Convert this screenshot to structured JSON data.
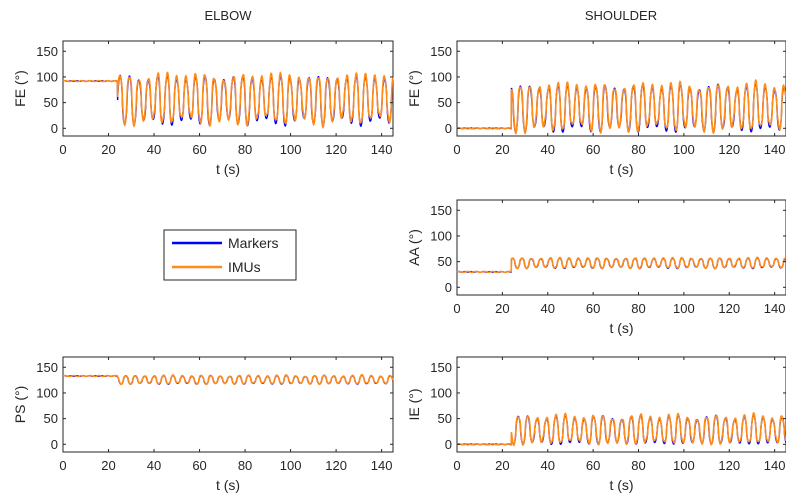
{
  "column_titles": {
    "left": "ELBOW",
    "right": "SHOULDER"
  },
  "legend": {
    "entries": [
      "Markers",
      "IMUs"
    ]
  },
  "colors": {
    "markers": "#0000ff",
    "imus": "#ff8c1a",
    "axis": "#262626"
  },
  "chart_data": [
    {
      "id": "elbow-fe",
      "type": "line",
      "xlabel": "t (s)",
      "ylabel": "FE (°)",
      "xlim": [
        0,
        145
      ],
      "ylim": [
        -15,
        170
      ],
      "xticks": [
        0,
        20,
        40,
        60,
        80,
        100,
        120,
        140
      ],
      "yticks": [
        0,
        50,
        100,
        150
      ],
      "baseline": 92,
      "baseline_end": 24,
      "osc": {
        "start": 24,
        "period": 4.15,
        "low": 12,
        "high": 98,
        "phase": 0
      },
      "series": [
        {
          "name": "Markers"
        },
        {
          "name": "IMUs"
        }
      ]
    },
    {
      "id": "shoulder-fe",
      "type": "line",
      "xlabel": "t (s)",
      "ylabel": "FE (°)",
      "xlim": [
        0,
        145
      ],
      "ylim": [
        -15,
        170
      ],
      "xticks": [
        0,
        20,
        40,
        60,
        80,
        100,
        120,
        140
      ],
      "yticks": [
        0,
        50,
        100,
        150
      ],
      "baseline": 0,
      "baseline_end": 24,
      "osc": {
        "start": 24,
        "period": 4.15,
        "low": -2,
        "high": 80,
        "phase": 1.9
      },
      "series": [
        {
          "name": "Markers"
        },
        {
          "name": "IMUs"
        }
      ]
    },
    {
      "id": "shoulder-aa",
      "type": "line",
      "xlabel": "t (s)",
      "ylabel": "AA (°)",
      "xlim": [
        0,
        145
      ],
      "ylim": [
        -15,
        170
      ],
      "xticks": [
        0,
        20,
        40,
        60,
        80,
        100,
        120,
        140
      ],
      "yticks": [
        0,
        50,
        100,
        150
      ],
      "baseline": 30,
      "baseline_end": 24,
      "osc": {
        "start": 24,
        "period": 4.15,
        "low": 38,
        "high": 56,
        "phase": 0.8
      },
      "series": [
        {
          "name": "Markers"
        },
        {
          "name": "IMUs"
        }
      ]
    },
    {
      "id": "elbow-ps",
      "type": "line",
      "xlabel": "t (s)",
      "ylabel": "PS (°)",
      "xlim": [
        0,
        145
      ],
      "ylim": [
        -15,
        170
      ],
      "xticks": [
        0,
        20,
        40,
        60,
        80,
        100,
        120,
        140
      ],
      "yticks": [
        0,
        50,
        100,
        150
      ],
      "baseline": 133,
      "baseline_end": 24,
      "osc": {
        "start": 24,
        "period": 4.15,
        "low": 118,
        "high": 133,
        "phase": 2.4
      },
      "series": [
        {
          "name": "Markers"
        },
        {
          "name": "IMUs"
        }
      ]
    },
    {
      "id": "shoulder-ie",
      "type": "line",
      "xlabel": "t (s)",
      "ylabel": "IE (°)",
      "xlim": [
        0,
        145
      ],
      "ylim": [
        -15,
        170
      ],
      "xticks": [
        0,
        20,
        40,
        60,
        80,
        100,
        120,
        140
      ],
      "yticks": [
        0,
        50,
        100,
        150
      ],
      "baseline": 0,
      "baseline_end": 24,
      "osc": {
        "start": 24,
        "period": 4.15,
        "low": 2,
        "high": 52,
        "phase": 3.3
      },
      "series": [
        {
          "name": "Markers"
        },
        {
          "name": "IMUs"
        }
      ]
    }
  ]
}
